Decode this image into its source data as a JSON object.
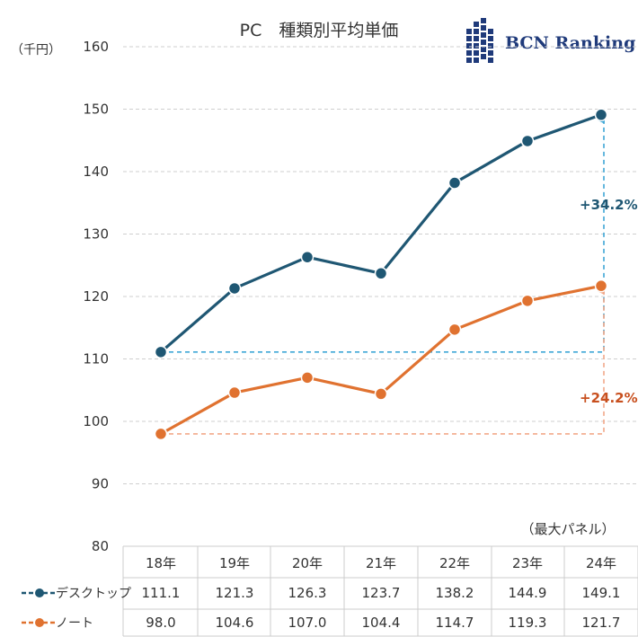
{
  "chart_data": {
    "type": "line",
    "title": "PC　種類別平均単価",
    "ylabel": "（千円）",
    "xlabel": "",
    "ylim": [
      80,
      160
    ],
    "yticks": [
      80,
      90,
      100,
      110,
      120,
      130,
      140,
      150,
      160
    ],
    "categories": [
      "18年",
      "19年",
      "20年",
      "21年",
      "22年",
      "23年",
      "24年"
    ],
    "category_note": "（最大パネル）",
    "grid": true,
    "series": [
      {
        "name": "デスクトップ",
        "color": "#1f5773",
        "values": [
          111.1,
          121.3,
          126.3,
          123.7,
          138.2,
          144.9,
          149.1
        ],
        "value_labels": [
          "111.1",
          "121.3",
          "126.3",
          "123.7",
          "138.2",
          "144.9",
          "149.1"
        ],
        "growth_label": "+34.2%",
        "growth_color": "#1f5773",
        "arrow_color": "#3fa7d6"
      },
      {
        "name": "ノート",
        "color": "#e07230",
        "values": [
          98.0,
          104.6,
          107.0,
          104.4,
          114.7,
          119.3,
          121.7
        ],
        "value_labels": [
          "98.0",
          "104.6",
          "107.0",
          "104.4",
          "114.7",
          "119.3",
          "121.7"
        ],
        "growth_label": "+24.2%",
        "growth_color": "#c8501f",
        "arrow_color": "#f2a98a"
      }
    ]
  },
  "logo": {
    "text": "BCN Ranking",
    "color": "#1f3a7a"
  }
}
